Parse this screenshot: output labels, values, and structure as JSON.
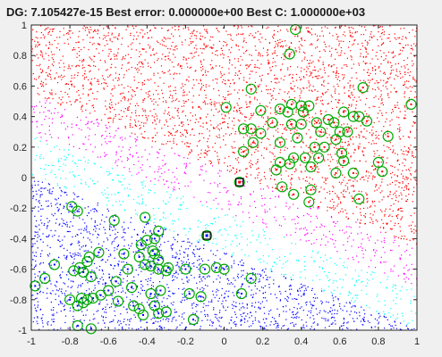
{
  "chart_data": {
    "type": "scatter",
    "title": "DG: 7.105427e-15   Best error: 0.000000e+00   Best C: 1.000000e+03",
    "xlim": [
      -1,
      1
    ],
    "ylim": [
      -1,
      1
    ],
    "x_ticks": [
      "-1",
      "-0.8",
      "-0.6",
      "-0.4",
      "-0.2",
      "0",
      "0.2",
      "0.4",
      "0.6",
      "0.8",
      "1"
    ],
    "y_ticks": [
      "-1",
      "-0.8",
      "-0.6",
      "-0.4",
      "-0.2",
      "0",
      "0.2",
      "0.4",
      "0.6",
      "0.8",
      "1"
    ],
    "grid": false,
    "regions": [
      {
        "class": "upper",
        "color": "#ff0000"
      },
      {
        "class": "margin-upper",
        "color": "#ff00ff"
      },
      {
        "class": "margin-lower",
        "color": "#00ffff"
      },
      {
        "class": "lower",
        "color": "#0000ff"
      }
    ],
    "training_points": {
      "upper": {
        "color": "#ff0000",
        "circle_color": "#00aa00",
        "points": [
          [
            0.37,
            0.97
          ],
          [
            0.34,
            0.81
          ],
          [
            0.72,
            0.59
          ],
          [
            0.14,
            0.58
          ],
          [
            0.97,
            0.48
          ],
          [
            0.01,
            0.46
          ],
          [
            0.19,
            0.44
          ],
          [
            0.35,
            0.48
          ],
          [
            0.4,
            0.47
          ],
          [
            0.44,
            0.47
          ],
          [
            0.29,
            0.45
          ],
          [
            0.33,
            0.43
          ],
          [
            0.41,
            0.43
          ],
          [
            0.62,
            0.43
          ],
          [
            0.67,
            0.4
          ],
          [
            0.7,
            0.4
          ],
          [
            0.74,
            0.37
          ],
          [
            0.54,
            0.38
          ],
          [
            0.48,
            0.36
          ],
          [
            0.57,
            0.36
          ],
          [
            0.25,
            0.36
          ],
          [
            0.35,
            0.35
          ],
          [
            0.4,
            0.35
          ],
          [
            0.14,
            0.32
          ],
          [
            0.1,
            0.32
          ],
          [
            0.6,
            0.3
          ],
          [
            0.64,
            0.3
          ],
          [
            0.5,
            0.3
          ],
          [
            0.19,
            0.29
          ],
          [
            0.85,
            0.27
          ],
          [
            0.38,
            0.26
          ],
          [
            0.58,
            0.25
          ],
          [
            0.29,
            0.23
          ],
          [
            0.15,
            0.23
          ],
          [
            0.47,
            0.2
          ],
          [
            0.52,
            0.2
          ],
          [
            0.61,
            0.16
          ],
          [
            0.1,
            0.17
          ],
          [
            0.36,
            0.13
          ],
          [
            0.42,
            0.13
          ],
          [
            0.49,
            0.13
          ],
          [
            0.62,
            0.11
          ],
          [
            0.29,
            0.1
          ],
          [
            0.34,
            0.09
          ],
          [
            0.45,
            0.07
          ],
          [
            0.27,
            0.05
          ],
          [
            0.58,
            0.03
          ],
          [
            0.67,
            0.03
          ],
          [
            0.8,
            0.1
          ],
          [
            0.82,
            0.04
          ],
          [
            0.3,
            -0.06
          ],
          [
            0.45,
            -0.08
          ],
          [
            0.36,
            -0.11
          ],
          [
            0.44,
            -0.16
          ],
          [
            0.7,
            -0.14
          ],
          [
            0.08,
            -0.03
          ]
        ]
      },
      "lower": {
        "color": "#0000ff",
        "circle_color": "#00aa00",
        "points": [
          [
            -0.09,
            -0.38
          ],
          [
            -0.79,
            -0.19
          ],
          [
            -0.76,
            -0.22
          ],
          [
            -0.57,
            -0.28
          ],
          [
            -0.41,
            -0.26
          ],
          [
            -0.34,
            -0.35
          ],
          [
            -0.36,
            -0.4
          ],
          [
            -0.4,
            -0.41
          ],
          [
            -0.43,
            -0.44
          ],
          [
            -0.37,
            -0.48
          ],
          [
            -0.52,
            -0.5
          ],
          [
            -0.65,
            -0.49
          ],
          [
            -0.7,
            -0.52
          ],
          [
            -0.71,
            -0.55
          ],
          [
            -0.75,
            -0.59
          ],
          [
            -0.73,
            -0.62
          ],
          [
            -0.88,
            -0.57
          ],
          [
            -0.78,
            -0.61
          ],
          [
            -0.69,
            -0.65
          ],
          [
            -0.44,
            -0.52
          ],
          [
            -0.36,
            -0.5
          ],
          [
            -0.34,
            -0.54
          ],
          [
            -0.41,
            -0.57
          ],
          [
            -0.38,
            -0.58
          ],
          [
            -0.34,
            -0.6
          ],
          [
            -0.29,
            -0.59
          ],
          [
            -0.3,
            -0.61
          ],
          [
            -0.5,
            -0.6
          ],
          [
            -0.2,
            -0.6
          ],
          [
            -0.1,
            -0.6
          ],
          [
            0.0,
            -0.6
          ],
          [
            -0.04,
            -0.59
          ],
          [
            0.14,
            -0.66
          ],
          [
            -0.93,
            -0.66
          ],
          [
            -0.98,
            -0.71
          ],
          [
            -0.56,
            -0.68
          ],
          [
            -0.48,
            -0.72
          ],
          [
            -0.33,
            -0.74
          ],
          [
            -0.38,
            -0.76
          ],
          [
            -0.18,
            -0.76
          ],
          [
            -0.12,
            -0.78
          ],
          [
            0.09,
            -0.76
          ],
          [
            -0.6,
            -0.74
          ],
          [
            -0.64,
            -0.77
          ],
          [
            -0.68,
            -0.79
          ],
          [
            -0.71,
            -0.8
          ],
          [
            -0.73,
            -0.82
          ],
          [
            -0.76,
            -0.84
          ],
          [
            -0.8,
            -0.8
          ],
          [
            -0.74,
            -0.79
          ],
          [
            -0.55,
            -0.81
          ],
          [
            -0.47,
            -0.84
          ],
          [
            -0.44,
            -0.86
          ],
          [
            -0.36,
            -0.84
          ],
          [
            -0.3,
            -0.88
          ],
          [
            -0.42,
            -0.9
          ],
          [
            -0.34,
            -0.89
          ],
          [
            -0.16,
            -0.93
          ],
          [
            -0.69,
            -0.99
          ],
          [
            -0.76,
            -0.97
          ]
        ]
      }
    },
    "highlight_points": [
      {
        "x": 0.08,
        "y": -0.03,
        "color": "#ff0000",
        "edge": "#000000"
      },
      {
        "x": -0.09,
        "y": -0.38,
        "color": "#0000ff",
        "edge": "#000000"
      }
    ]
  }
}
